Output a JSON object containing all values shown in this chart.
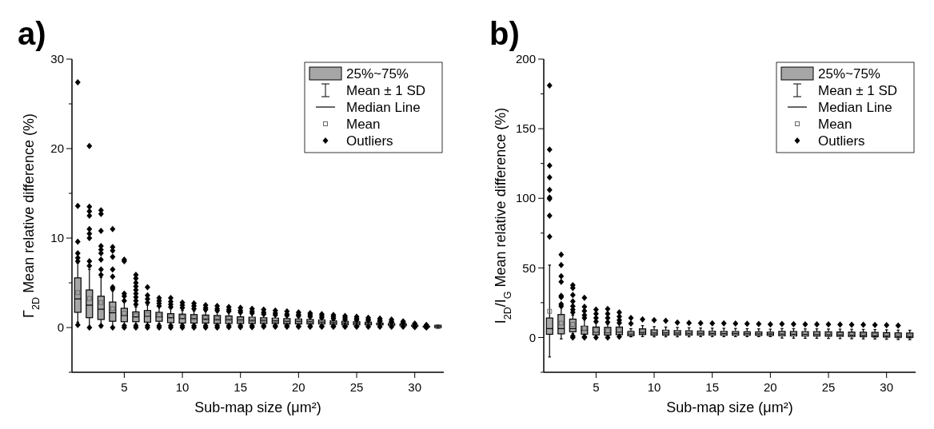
{
  "chart_data": [
    {
      "type": "box",
      "title": "a)",
      "xlabel": "Sub-map size (μm²)",
      "ylabel": "Γ$_{2D}$ Mean relative difference (%)",
      "color": "#a6a6a6",
      "annotations": [
        "25%~75%",
        "Mean ± 1 SD",
        "Median Line",
        "Mean",
        "Outliers"
      ],
      "categories": [
        null,
        null,
        null,
        null,
        "5",
        null,
        null,
        null,
        null,
        "10",
        null,
        null,
        null,
        null,
        "15",
        null,
        null,
        null,
        null,
        "20",
        null,
        null,
        null,
        null,
        "25",
        null,
        null,
        null,
        null,
        "30",
        null,
        null
      ],
      "ylim": [
        -5,
        30
      ],
      "yticks": [
        {
          "value": -5,
          "label": null
        },
        0,
        {
          "value": 5,
          "label": null
        },
        10,
        {
          "value": 15,
          "label": null
        },
        20,
        {
          "value": 25,
          "label": null
        },
        30
      ],
      "boxes": [
        {
          "low": 0.6,
          "q1": 1.7,
          "median": 3.2,
          "q3": 5.55,
          "high": 7.2,
          "mean": 3.9,
          "outliers": [
            27.4,
            13.6,
            9.6,
            8.3,
            7.8,
            7.4,
            0.3
          ]
        },
        {
          "low": 0,
          "q1": 1.1,
          "median": 2.5,
          "q3": 4.2,
          "high": 6.5,
          "mean": 3.25,
          "outliers": [
            20.3,
            13.5,
            13.0,
            12.5,
            11.0,
            10.5,
            10.0,
            7.4,
            6.9,
            0
          ]
        },
        {
          "low": 0,
          "q1": 0.9,
          "median": 2.05,
          "q3": 3.5,
          "high": 5.6,
          "mean": 2.8,
          "outliers": [
            13.1,
            12.7,
            10.8,
            9.1,
            8.7,
            8.3,
            7.6,
            6.5,
            5.9,
            0.2
          ]
        },
        {
          "low": 0.1,
          "q1": 0.7,
          "median": 1.65,
          "q3": 2.85,
          "high": 4.1,
          "mean": 2.1,
          "outliers": [
            11.0,
            9.0,
            8.6,
            7.9,
            6.5,
            5.7,
            4.5,
            4.3,
            0
          ]
        },
        {
          "low": 0.3,
          "q1": 0.65,
          "median": 1.35,
          "q3": 2.15,
          "high": 2.9,
          "mean": 1.6,
          "outliers": [
            7.6,
            7.4,
            3.8,
            3.5,
            3.0,
            0.2,
            0
          ]
        },
        {
          "low": 0.4,
          "q1": 0.65,
          "median": 1.2,
          "q3": 1.75,
          "high": 2.3,
          "mean": 1.35,
          "outliers": [
            5.9,
            5.5,
            5.0,
            4.6,
            4.2,
            3.8,
            3.4,
            3.0,
            2.6,
            0.2,
            0
          ]
        },
        {
          "low": 0.4,
          "q1": 0.6,
          "median": 1.25,
          "q3": 1.9,
          "high": 2.5,
          "mean": 1.45,
          "outliers": [
            4.5,
            3.6,
            3.2,
            2.8,
            0.2,
            0
          ]
        },
        {
          "low": 0.45,
          "q1": 0.7,
          "median": 1.2,
          "q3": 1.7,
          "high": 2.3,
          "mean": 1.4,
          "outliers": [
            3.3,
            3.0,
            2.7,
            2.4,
            0.2,
            0
          ]
        },
        {
          "low": 0.4,
          "q1": 0.55,
          "median": 1.1,
          "q3": 1.55,
          "high": 2.1,
          "mean": 1.25,
          "outliers": [
            3.3,
            2.9,
            2.6,
            2.3,
            0.2,
            0
          ]
        },
        {
          "low": 0.35,
          "q1": 0.5,
          "median": 1.0,
          "q3": 1.5,
          "high": 1.9,
          "mean": 1.15,
          "outliers": [
            2.8,
            2.5,
            2.2,
            0.2,
            0
          ]
        },
        {
          "low": 0.35,
          "q1": 0.5,
          "median": 1.0,
          "q3": 1.45,
          "high": 1.85,
          "mean": 1.1,
          "outliers": [
            2.7,
            2.4,
            2.1,
            0.2,
            0
          ]
        },
        {
          "low": 0.35,
          "q1": 0.5,
          "median": 0.95,
          "q3": 1.4,
          "high": 1.8,
          "mean": 1.05,
          "outliers": [
            2.5,
            2.2,
            2.0,
            0.2,
            0
          ]
        },
        {
          "low": 0.3,
          "q1": 0.45,
          "median": 0.9,
          "q3": 1.35,
          "high": 1.7,
          "mean": 1.0,
          "outliers": [
            2.4,
            2.1,
            1.9,
            0.2,
            0
          ]
        },
        {
          "low": 0.3,
          "q1": 0.45,
          "median": 0.9,
          "q3": 1.3,
          "high": 1.65,
          "mean": 1.0,
          "outliers": [
            2.3,
            2.0,
            1.8,
            0.2,
            0.05
          ]
        },
        {
          "low": 0.3,
          "q1": 0.45,
          "median": 0.85,
          "q3": 1.2,
          "high": 1.55,
          "mean": 0.9,
          "outliers": [
            2.2,
            1.9,
            1.7,
            0.2,
            0.05
          ]
        },
        {
          "low": 0.3,
          "q1": 0.45,
          "median": 0.8,
          "q3": 1.15,
          "high": 1.5,
          "mean": 0.9,
          "outliers": [
            2.1,
            1.8,
            1.6,
            0.2,
            0.05
          ]
        },
        {
          "low": 0.3,
          "q1": 0.45,
          "median": 0.8,
          "q3": 1.1,
          "high": 1.4,
          "mean": 0.85,
          "outliers": [
            2.0,
            1.7,
            1.5,
            0.2,
            0.1
          ]
        },
        {
          "low": 0.3,
          "q1": 0.45,
          "median": 0.75,
          "q3": 1.05,
          "high": 1.3,
          "mean": 0.8,
          "outliers": [
            1.9,
            1.6,
            1.4,
            0.2,
            0.1
          ]
        },
        {
          "low": 0.3,
          "q1": 0.4,
          "median": 0.7,
          "q3": 1.0,
          "high": 1.25,
          "mean": 0.75,
          "outliers": [
            1.8,
            1.5,
            1.35,
            0.2,
            0.1
          ]
        },
        {
          "low": 0.3,
          "q1": 0.4,
          "median": 0.7,
          "q3": 0.95,
          "high": 1.2,
          "mean": 0.75,
          "outliers": [
            1.7,
            1.45,
            1.3,
            0.15,
            0.1
          ]
        },
        {
          "low": 0.3,
          "q1": 0.4,
          "median": 0.65,
          "q3": 0.9,
          "high": 1.1,
          "mean": 0.7,
          "outliers": [
            1.6,
            1.4,
            1.2,
            0.15,
            0.1
          ]
        },
        {
          "low": 0.3,
          "q1": 0.4,
          "median": 0.6,
          "q3": 0.85,
          "high": 1.0,
          "mean": 0.65,
          "outliers": [
            1.5,
            1.3,
            1.1,
            0.15,
            0.1
          ]
        },
        {
          "low": 0.3,
          "q1": 0.35,
          "median": 0.55,
          "q3": 0.75,
          "high": 0.9,
          "mean": 0.6,
          "outliers": [
            1.4,
            1.2,
            1.0,
            0.15,
            0.1
          ]
        },
        {
          "low": 0.25,
          "q1": 0.3,
          "median": 0.5,
          "q3": 0.7,
          "high": 0.8,
          "mean": 0.5,
          "outliers": [
            1.3,
            1.1,
            0.9,
            0.15,
            0.1
          ]
        },
        {
          "low": 0.25,
          "q1": 0.3,
          "median": 0.5,
          "q3": 0.65,
          "high": 0.75,
          "mean": 0.5,
          "outliers": [
            1.2,
            1.0,
            0.85,
            0.15,
            0.1
          ]
        },
        {
          "low": 0.2,
          "q1": 0.3,
          "median": 0.45,
          "q3": 0.6,
          "high": 0.7,
          "mean": 0.45,
          "outliers": [
            1.1,
            0.9,
            0.8,
            0.1
          ]
        },
        {
          "low": 0.2,
          "q1": 0.3,
          "median": 0.4,
          "q3": 0.5,
          "high": 0.6,
          "mean": 0.4,
          "outliers": [
            1.0,
            0.8,
            0.7,
            0.1
          ]
        },
        {
          "low": 0.15,
          "q1": 0.25,
          "median": 0.35,
          "q3": 0.45,
          "high": 0.55,
          "mean": 0.35,
          "outliers": [
            0.9,
            0.7,
            0.6,
            0.1
          ]
        },
        {
          "low": 0.15,
          "q1": 0.2,
          "median": 0.3,
          "q3": 0.4,
          "high": 0.45,
          "mean": 0.3,
          "outliers": [
            0.7,
            0.6,
            0.5,
            0.1
          ]
        },
        {
          "low": 0.1,
          "q1": 0.15,
          "median": 0.2,
          "q3": 0.25,
          "high": 0.3,
          "mean": 0.2,
          "outliers": [
            0.45,
            0.35,
            0.05
          ]
        },
        {
          "low": 0.05,
          "q1": 0.05,
          "median": 0.1,
          "q3": 0.15,
          "high": 0.15,
          "mean": 0.1,
          "outliers": [
            0.3,
            0.2,
            0
          ]
        },
        {
          "low": 0,
          "q1": 0,
          "median": 0.1,
          "q3": 0.25,
          "high": 0.3,
          "mean": 0.1
        }
      ]
    },
    {
      "type": "box",
      "title": "b)",
      "xlabel": "Sub-map size (μm²)",
      "ylabel": "I$_{2D}$/I$_{G}$ Mean relative difference (%)",
      "color": "#a6a6a6",
      "annotations": [
        "25%~75%",
        "Mean ± 1 SD",
        "Median Line",
        "Mean",
        "Outliers"
      ],
      "categories": [
        null,
        null,
        null,
        null,
        "5",
        null,
        null,
        null,
        null,
        "10",
        null,
        null,
        null,
        null,
        "15",
        null,
        null,
        null,
        null,
        "20",
        null,
        null,
        null,
        null,
        "25",
        null,
        null,
        null,
        null,
        "30",
        null,
        null
      ],
      "ylim": [
        -25,
        200
      ],
      "yticks": [
        {
          "value": -25,
          "label": null
        },
        0,
        {
          "value": 25,
          "label": null
        },
        50,
        {
          "value": 75,
          "label": null
        },
        100,
        {
          "value": 125,
          "label": null
        },
        150,
        {
          "value": 175,
          "label": null
        },
        200
      ],
      "boxes": [
        {
          "low": -14,
          "q1": 2.3,
          "median": 6.4,
          "q3": 14,
          "high": 52,
          "mean": 18.8,
          "outliers": [
            181,
            135,
            123.5,
            115,
            106,
            100.5,
            99.5,
            87.5,
            72.5
          ]
        },
        {
          "low": -1,
          "q1": 2.6,
          "median": 6.4,
          "q3": 16.5,
          "high": 21.5,
          "mean": 10.3,
          "outliers": [
            59.5,
            52,
            44,
            40,
            30,
            29,
            24,
            22.5
          ]
        },
        {
          "low": 2.7,
          "q1": 4.1,
          "median": 6.4,
          "q3": 13.2,
          "high": 16,
          "mean": 9.4,
          "outliers": [
            37.5,
            35.5,
            30.5,
            26,
            22.5,
            20,
            18,
            1,
            0
          ]
        },
        {
          "low": 0.2,
          "q1": 2.4,
          "median": 5.1,
          "q3": 8.1,
          "high": 13,
          "mean": 6.6,
          "outliers": [
            28.5,
            22,
            19,
            16,
            14,
            0.5,
            0
          ]
        },
        {
          "low": 0.1,
          "q1": 1.9,
          "median": 3.8,
          "q3": 7.5,
          "high": 10.5,
          "mean": 5.3,
          "outliers": [
            20,
            17,
            14,
            11.5,
            0
          ]
        },
        {
          "low": 0.1,
          "q1": 1.7,
          "median": 3.4,
          "q3": 7.3,
          "high": 9.5,
          "mean": 4.7,
          "outliers": [
            20.5,
            17,
            14,
            11,
            0
          ]
        },
        {
          "low": 0.2,
          "q1": 2,
          "median": 3.9,
          "q3": 7.5,
          "high": 10,
          "mean": 5.1,
          "outliers": [
            18,
            15,
            12.5,
            10.5,
            0.5
          ]
        },
        {
          "low": 0.5,
          "q1": 1.3,
          "median": 2.4,
          "q3": 4.3,
          "high": 6.3,
          "mean": 3.4,
          "outliers": [
            14,
            10
          ]
        },
        {
          "low": 0.6,
          "q1": 2.1,
          "median": 3.6,
          "q3": 6.2,
          "high": 8.5,
          "mean": 4.3,
          "outliers": [
            13
          ]
        },
        {
          "low": 0.5,
          "q1": 1.7,
          "median": 3.2,
          "q3": 5.5,
          "high": 7.8,
          "mean": 4.0,
          "outliers": [
            12.5
          ]
        },
        {
          "low": 0.5,
          "q1": 1.7,
          "median": 3.3,
          "q3": 5.2,
          "high": 7.5,
          "mean": 3.8,
          "outliers": [
            12
          ]
        },
        {
          "low": 0.5,
          "q1": 1.8,
          "median": 3.2,
          "q3": 5.0,
          "high": 7.2,
          "mean": 3.6,
          "outliers": [
            10.7
          ]
        },
        {
          "low": 0.5,
          "q1": 1.7,
          "median": 3.0,
          "q3": 4.8,
          "high": 7.0,
          "mean": 3.5,
          "outliers": [
            10.5
          ]
        },
        {
          "low": 0.6,
          "q1": 1.7,
          "median": 3.0,
          "q3": 4.6,
          "high": 6.8,
          "mean": 3.4,
          "outliers": [
            10.3
          ]
        },
        {
          "low": 0.6,
          "q1": 1.7,
          "median": 2.9,
          "q3": 4.5,
          "high": 6.7,
          "mean": 3.3,
          "outliers": [
            10.2
          ]
        },
        {
          "low": 0.6,
          "q1": 1.6,
          "median": 2.8,
          "q3": 4.4,
          "high": 6.6,
          "mean": 3.2,
          "outliers": [
            10.1
          ]
        },
        {
          "low": 0.6,
          "q1": 1.6,
          "median": 2.8,
          "q3": 4.3,
          "high": 6.5,
          "mean": 3.1,
          "outliers": [
            10
          ]
        },
        {
          "low": 0.6,
          "q1": 1.6,
          "median": 2.7,
          "q3": 4.1,
          "high": 6.3,
          "mean": 3.0,
          "outliers": [
            9.8
          ]
        },
        {
          "low": 0.6,
          "q1": 1.5,
          "median": 2.6,
          "q3": 4.0,
          "high": 6.2,
          "mean": 2.9,
          "outliers": [
            9.7
          ]
        },
        {
          "low": 0.6,
          "q1": 1.5,
          "median": 2.5,
          "q3": 3.8,
          "high": 6.0,
          "mean": 2.8,
          "outliers": [
            9.5
          ]
        },
        {
          "low": -0.4,
          "q1": 1.2,
          "median": 2.4,
          "q3": 4.4,
          "high": 6.4,
          "mean": 2.7,
          "outliers": [
            9.7
          ]
        },
        {
          "low": -0.5,
          "q1": 1.1,
          "median": 2.3,
          "q3": 4.3,
          "high": 6.3,
          "mean": 2.6,
          "outliers": [
            9.6
          ]
        },
        {
          "low": -0.6,
          "q1": 1.0,
          "median": 2.2,
          "q3": 4.2,
          "high": 6.2,
          "mean": 2.5,
          "outliers": [
            9.5
          ]
        },
        {
          "low": -0.6,
          "q1": 1.0,
          "median": 2.1,
          "q3": 4.2,
          "high": 6.2,
          "mean": 2.3,
          "outliers": [
            9.5
          ]
        },
        {
          "low": -0.7,
          "q1": 0.9,
          "median": 2.0,
          "q3": 4.1,
          "high": 6.1,
          "mean": 2.2,
          "outliers": [
            9.4
          ]
        },
        {
          "low": -0.8,
          "q1": 0.8,
          "median": 1.8,
          "q3": 4.0,
          "high": 6.0,
          "mean": 2.0,
          "outliers": [
            9.3
          ]
        },
        {
          "low": -0.9,
          "q1": 0.7,
          "median": 1.6,
          "q3": 3.9,
          "high": 5.9,
          "mean": 1.8,
          "outliers": [
            9.2
          ]
        },
        {
          "low": -1.0,
          "q1": 0.6,
          "median": 1.4,
          "q3": 3.8,
          "high": 5.8,
          "mean": 1.6,
          "outliers": [
            9.1
          ]
        },
        {
          "low": -1.1,
          "q1": 0.5,
          "median": 1.2,
          "q3": 3.7,
          "high": 5.7,
          "mean": 1.4,
          "outliers": [
            9.0
          ]
        },
        {
          "low": -1.3,
          "q1": 0.3,
          "median": 1.0,
          "q3": 3.5,
          "high": 5.5,
          "mean": 1.2,
          "outliers": [
            8.8
          ]
        },
        {
          "low": -1.5,
          "q1": 0.1,
          "median": 0.8,
          "q3": 3.3,
          "high": 5.3,
          "mean": 1.0,
          "outliers": [
            8.6
          ]
        },
        {
          "low": -1.6,
          "q1": 0,
          "median": 0.7,
          "q3": 3.2,
          "high": 5.2,
          "mean": 0.9
        }
      ]
    }
  ]
}
